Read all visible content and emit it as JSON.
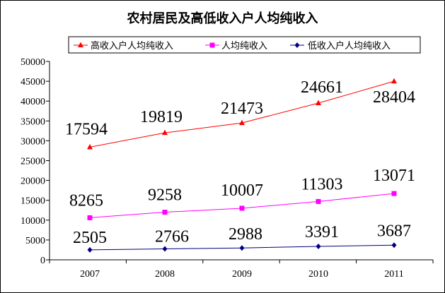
{
  "chart_data": {
    "type": "line",
    "title": "农村居民及高低收入户人均纯收入",
    "xlabel": "",
    "ylabel": "",
    "x": [
      "2007",
      "2008",
      "2009",
      "2010",
      "2011"
    ],
    "ylim": [
      0,
      50000
    ],
    "yticks": [
      "0",
      "5000",
      "10000",
      "15000",
      "20000",
      "25000",
      "30000",
      "35000",
      "40000",
      "45000",
      "50000"
    ],
    "grid": false,
    "legend_position": "top",
    "series": [
      {
        "name": "高收入户人均纯收入",
        "color": "#ff0000",
        "marker": "triangle",
        "values": [
          28400,
          32000,
          34500,
          39500,
          45000
        ],
        "labels": [
          "17594",
          "19819",
          "21473",
          "24661",
          "28404"
        ]
      },
      {
        "name": "人均纯收入",
        "color": "#ff00ff",
        "marker": "square",
        "values": [
          10600,
          12000,
          13000,
          14700,
          16700
        ],
        "labels": [
          "8265",
          "9258",
          "10007",
          "11303",
          "13071"
        ]
      },
      {
        "name": "低收入户人均纯收入",
        "color": "#000080",
        "marker": "diamond",
        "values": [
          2505,
          2766,
          2988,
          3391,
          3687
        ],
        "labels": [
          "2505",
          "2766",
          "2988",
          "3391",
          "3687"
        ]
      }
    ]
  }
}
